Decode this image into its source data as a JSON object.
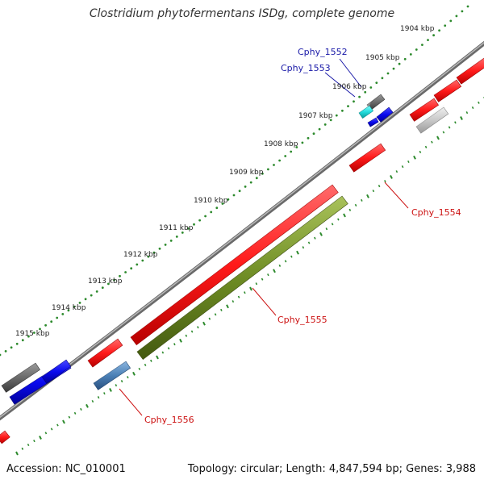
{
  "header": {
    "title": "Clostridium phytofermentans ISDg, complete genome"
  },
  "footer": {
    "accession": "Accession: NC_010001",
    "summary": "Topology: circular; Length: 4,847,594 bp; Genes: 3,988"
  },
  "ruler": {
    "ticks": [
      {
        "label": "1904 kbp"
      },
      {
        "label": "1905 kbp"
      },
      {
        "label": "1906 kbp"
      },
      {
        "label": "1907 kbp"
      },
      {
        "label": "1908 kbp"
      },
      {
        "label": "1909 kbp"
      },
      {
        "label": "1910 kbp"
      },
      {
        "label": "1911 kbp"
      },
      {
        "label": "1912 kbp"
      },
      {
        "label": "1913 kbp"
      },
      {
        "label": "1914 kbp"
      },
      {
        "label": "1915 kbp"
      }
    ]
  },
  "gene_labels": [
    {
      "name": "Cphy_1552",
      "color": "#1a1aa8"
    },
    {
      "name": "Cphy_1553",
      "color": "#1a1aa8"
    },
    {
      "name": "Cphy_1554",
      "color": "#cc1111"
    },
    {
      "name": "Cphy_1555",
      "color": "#cc1111"
    },
    {
      "name": "Cphy_1556",
      "color": "#cc1111"
    }
  ],
  "colors": {
    "backbone": "#8c8c8c",
    "tick_green": "#2d8a2d",
    "gene_red": "#ff1a1a",
    "gene_blue": "#0a0aee",
    "gene_dark_gray": "#6a6a6a",
    "gene_light_gray": "#c8c8c8",
    "gene_cyan": "#22dddd",
    "gene_olive": "#6e8c24",
    "gene_steel": "#4a7fb5"
  }
}
